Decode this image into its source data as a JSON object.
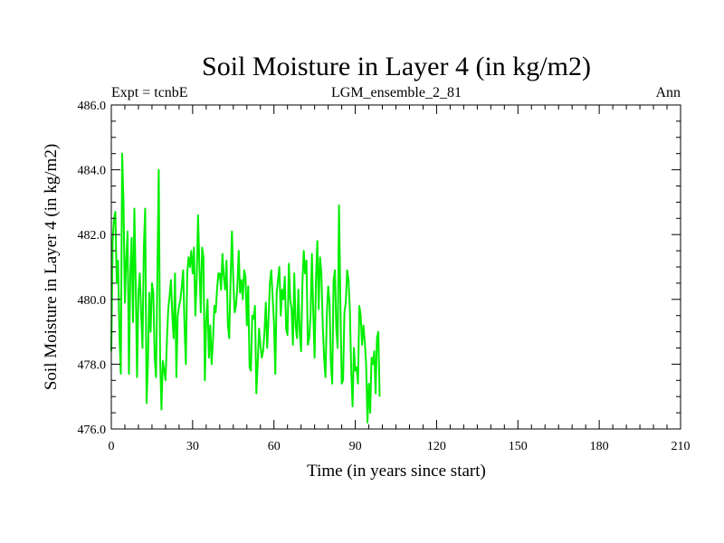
{
  "chart_data": {
    "type": "line",
    "title": "Soil Moisture in Layer 4 (in kg/m2)",
    "subtitle_left": "Expt = tcnbE",
    "subtitle_center": "LGM_ensemble_2_81",
    "subtitle_right": "Ann",
    "xlabel": "Time (in years since start)",
    "ylabel": "Soil Moisture in Layer 4 (in kg/m2)",
    "xlim": [
      0,
      210
    ],
    "ylim": [
      476.0,
      486.0
    ],
    "xticks": [
      0,
      30,
      60,
      90,
      120,
      150,
      180,
      210
    ],
    "xtick_labels": [
      "0",
      "30",
      "60",
      "90",
      "120",
      "150",
      "180",
      "210"
    ],
    "yticks": [
      476.0,
      478.0,
      480.0,
      482.0,
      484.0,
      486.0
    ],
    "ytick_labels": [
      "476.0",
      "478.0",
      "480.0",
      "482.0",
      "484.0",
      "486.0"
    ],
    "grid": false,
    "series": [
      {
        "name": "Soil Moisture",
        "color": "#00ee00",
        "x_start": 0,
        "x_step": 0.5,
        "values": [
          478.4,
          481.8,
          482.5,
          482.7,
          480.5,
          481.2,
          478.9,
          477.7,
          484.5,
          483.0,
          479.9,
          481.2,
          482.1,
          477.7,
          480.8,
          481.9,
          479.3,
          482.8,
          480.5,
          477.6,
          480.2,
          480.8,
          479.6,
          478.5,
          481.6,
          482.8,
          476.8,
          478.0,
          480.2,
          479.0,
          480.5,
          480.2,
          478.2,
          477.6,
          480.8,
          484.0,
          478.2,
          476.6,
          478.1,
          477.8,
          477.5,
          478.7,
          479.7,
          480.1,
          480.6,
          479.5,
          478.8,
          480.8,
          477.6,
          479.5,
          479.8,
          480.0,
          480.4,
          480.9,
          479.2,
          478.0,
          480.8,
          481.3,
          481.0,
          481.5,
          480.8,
          481.6,
          479.5,
          480.6,
          482.6,
          481.0,
          479.6,
          481.6,
          481.3,
          477.5,
          479.3,
          480.0,
          478.2,
          479.2,
          478.0,
          478.7,
          479.8,
          479.6,
          480.3,
          480.8,
          480.8,
          480.3,
          481.4,
          480.7,
          480.3,
          481.2,
          479.2,
          478.8,
          480.6,
          482.1,
          480.6,
          479.6,
          479.8,
          480.4,
          481.5,
          480.2,
          480.6,
          480.0,
          480.9,
          480.7,
          479.2,
          480.4,
          477.9,
          477.8,
          479.5,
          479.4,
          479.8,
          477.1,
          478.0,
          479.1,
          478.6,
          478.2,
          478.4,
          479.0,
          479.9,
          478.5,
          479.4,
          480.5,
          480.9,
          480.1,
          479.3,
          477.7,
          480.2,
          480.6,
          481.0,
          479.5,
          480.3,
          480.0,
          480.7,
          479.1,
          478.9,
          481.1,
          480.0,
          479.7,
          478.6,
          480.8,
          479.2,
          478.8,
          480.3,
          479.0,
          478.4,
          480.5,
          481.5,
          480.8,
          481.2,
          478.6,
          478.8,
          479.5,
          481.4,
          479.6,
          478.2,
          480.6,
          481.8,
          479.7,
          481.3,
          480.8,
          479.2,
          478.2,
          477.6,
          479.5,
          480.4,
          479.9,
          478.0,
          477.4,
          480.6,
          480.9,
          479.1,
          478.5,
          482.9,
          480.0,
          477.4,
          477.5,
          479.6,
          479.9,
          480.9,
          480.6,
          479.7,
          477.8,
          476.7,
          478.5,
          477.8,
          477.9,
          477.4,
          479.8,
          479.5,
          478.6,
          479.2,
          478.7,
          478.0,
          476.2,
          477.4,
          476.5,
          478.2,
          478.0,
          478.4,
          477.1,
          478.8,
          479.0,
          477.0
        ]
      }
    ]
  }
}
